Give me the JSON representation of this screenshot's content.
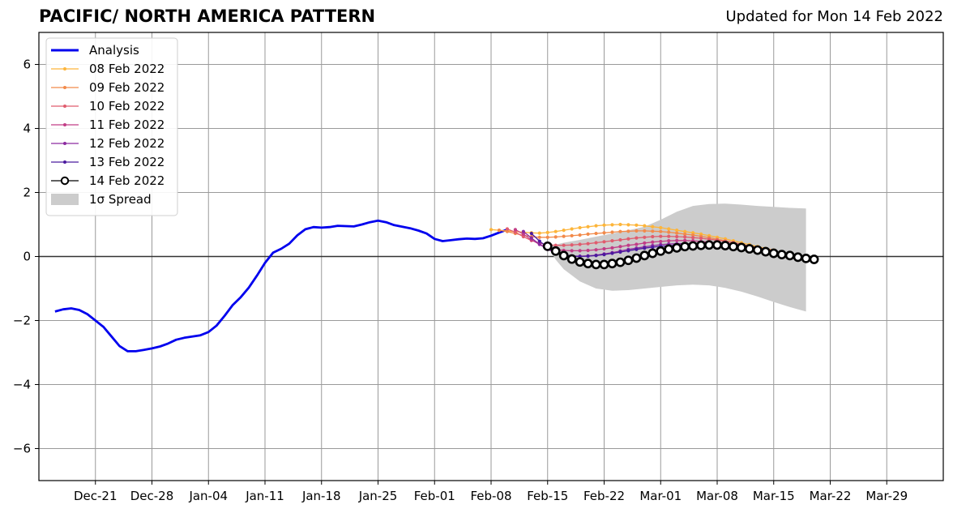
{
  "chart_data": {
    "type": "line",
    "title": "PACIFIC/ NORTH AMERICA PATTERN",
    "subtitle": "Updated for Mon 14 Feb 2022",
    "xlabel": "",
    "ylabel": "",
    "x_start": "Dec-14",
    "xlim": [
      "Dec-14",
      "Apr-05"
    ],
    "ylim": [
      -7,
      7
    ],
    "grid": true,
    "legend_position": "top-left",
    "x_ticks": [
      "Dec-21",
      "Dec-28",
      "Jan-04",
      "Jan-11",
      "Jan-18",
      "Jan-25",
      "Feb-01",
      "Feb-08",
      "Feb-15",
      "Feb-22",
      "Mar-01",
      "Mar-08",
      "Mar-15",
      "Mar-22",
      "Mar-29"
    ],
    "y_ticks": [
      "−6",
      "−4",
      "−2",
      "0",
      "2",
      "4",
      "6"
    ],
    "series": [
      {
        "name": "Analysis",
        "color": "#0000ee",
        "start": "Dec-16",
        "values": [
          -1.72,
          -1.65,
          -1.62,
          -1.67,
          -1.8,
          -2.0,
          -2.2,
          -2.5,
          -2.8,
          -2.96,
          -2.96,
          -2.92,
          -2.87,
          -2.81,
          -2.72,
          -2.6,
          -2.54,
          -2.5,
          -2.46,
          -2.36,
          -2.16,
          -1.85,
          -1.52,
          -1.27,
          -0.97,
          -0.6,
          -0.2,
          0.12,
          0.24,
          0.4,
          0.66,
          0.85,
          0.92,
          0.9,
          0.92,
          0.96,
          0.95,
          0.94,
          1.0,
          1.07,
          1.12,
          1.07,
          0.98,
          0.93,
          0.88,
          0.81,
          0.72,
          0.55,
          0.48,
          0.51,
          0.54,
          0.56,
          0.55,
          0.57,
          0.65,
          0.75,
          0.84
        ]
      },
      {
        "name": "08 Feb 2022",
        "color": "#fdb53a",
        "start": "Feb-08",
        "values": [
          0.84,
          0.82,
          0.8,
          0.78,
          0.76,
          0.74,
          0.73,
          0.75,
          0.78,
          0.82,
          0.86,
          0.9,
          0.93,
          0.96,
          0.98,
          0.99,
          1.0,
          0.99,
          0.98,
          0.96,
          0.93,
          0.9,
          0.86,
          0.82,
          0.78,
          0.74,
          0.7,
          0.65,
          0.6,
          0.55,
          0.49,
          0.43,
          0.37,
          0.31,
          0.25,
          0.2
        ]
      },
      {
        "name": "09 Feb 2022",
        "color": "#f28a4a",
        "start": "Feb-09",
        "values": [
          0.82,
          0.78,
          0.72,
          0.66,
          0.62,
          0.6,
          0.6,
          0.61,
          0.63,
          0.65,
          0.67,
          0.7,
          0.72,
          0.74,
          0.76,
          0.78,
          0.79,
          0.8,
          0.8,
          0.79,
          0.78,
          0.76,
          0.73,
          0.7,
          0.67,
          0.63,
          0.59,
          0.54,
          0.49,
          0.44,
          0.38,
          0.32,
          0.26,
          0.21,
          0.18
        ]
      },
      {
        "name": "10 Feb 2022",
        "color": "#e05c6e",
        "start": "Feb-10",
        "values": [
          0.86,
          0.76,
          0.62,
          0.5,
          0.42,
          0.37,
          0.35,
          0.35,
          0.36,
          0.38,
          0.4,
          0.43,
          0.46,
          0.49,
          0.52,
          0.55,
          0.58,
          0.6,
          0.62,
          0.63,
          0.63,
          0.62,
          0.61,
          0.59,
          0.57,
          0.54,
          0.51,
          0.47,
          0.43,
          0.38,
          0.33,
          0.28,
          0.23,
          0.19
        ]
      },
      {
        "name": "11 Feb 2022",
        "color": "#c23d86",
        "start": "Feb-11",
        "values": [
          0.84,
          0.7,
          0.52,
          0.38,
          0.28,
          0.22,
          0.19,
          0.18,
          0.18,
          0.19,
          0.21,
          0.24,
          0.27,
          0.31,
          0.35,
          0.38,
          0.42,
          0.45,
          0.47,
          0.49,
          0.5,
          0.5,
          0.49,
          0.47,
          0.45,
          0.42,
          0.39,
          0.35,
          0.31,
          0.27,
          0.23,
          0.19,
          0.16
        ]
      },
      {
        "name": "12 Feb 2022",
        "color": "#8c2aa0",
        "start": "Feb-12",
        "values": [
          0.78,
          0.58,
          0.38,
          0.22,
          0.12,
          0.05,
          0.02,
          0.01,
          0.02,
          0.04,
          0.08,
          0.12,
          0.17,
          0.22,
          0.26,
          0.3,
          0.34,
          0.37,
          0.39,
          0.4,
          0.4,
          0.39,
          0.38,
          0.36,
          0.34,
          0.31,
          0.28,
          0.24,
          0.21,
          0.17,
          0.14,
          0.11
        ]
      },
      {
        "name": "13 Feb 2022",
        "color": "#4b1a9e",
        "start": "Feb-13",
        "values": [
          0.72,
          0.48,
          0.28,
          0.14,
          0.06,
          0.01,
          0.0,
          0.01,
          0.03,
          0.06,
          0.1,
          0.14,
          0.18,
          0.22,
          0.26,
          0.29,
          0.32,
          0.34,
          0.35,
          0.36,
          0.36,
          0.35,
          0.34,
          0.32,
          0.3,
          0.27,
          0.24,
          0.21,
          0.18,
          0.15,
          0.13
        ]
      },
      {
        "name": "14 Feb 2022",
        "color": "#000000",
        "start": "Feb-15",
        "values": [
          0.32,
          0.17,
          0.03,
          -0.08,
          -0.17,
          -0.22,
          -0.25,
          -0.25,
          -0.22,
          -0.18,
          -0.12,
          -0.05,
          0.03,
          0.1,
          0.17,
          0.23,
          0.27,
          0.31,
          0.33,
          0.35,
          0.36,
          0.36,
          0.34,
          0.31,
          0.28,
          0.24,
          0.2,
          0.15,
          0.1,
          0.06,
          0.03,
          -0.02,
          -0.06,
          -0.09
        ]
      }
    ],
    "spread": {
      "name": "1σ Spread",
      "color": "#cccccc",
      "start": "Feb-15",
      "end": "Mar-19",
      "upper_points": [
        {
          "x": "Feb-15",
          "y": 0.32
        },
        {
          "x": "Feb-17",
          "y": 0.43
        },
        {
          "x": "Feb-19",
          "y": 0.52
        },
        {
          "x": "Feb-21",
          "y": 0.62
        },
        {
          "x": "Feb-23",
          "y": 0.72
        },
        {
          "x": "Feb-25",
          "y": 0.82
        },
        {
          "x": "Feb-27",
          "y": 0.93
        },
        {
          "x": "Mar-01",
          "y": 1.15
        },
        {
          "x": "Mar-03",
          "y": 1.4
        },
        {
          "x": "Mar-05",
          "y": 1.58
        },
        {
          "x": "Mar-07",
          "y": 1.64
        },
        {
          "x": "Mar-09",
          "y": 1.65
        },
        {
          "x": "Mar-11",
          "y": 1.62
        },
        {
          "x": "Mar-13",
          "y": 1.58
        },
        {
          "x": "Mar-15",
          "y": 1.55
        },
        {
          "x": "Mar-17",
          "y": 1.52
        },
        {
          "x": "Mar-19",
          "y": 1.5
        }
      ],
      "lower_points": [
        {
          "x": "Feb-15",
          "y": 0.32
        },
        {
          "x": "Feb-16",
          "y": -0.1
        },
        {
          "x": "Feb-17",
          "y": -0.4
        },
        {
          "x": "Feb-19",
          "y": -0.78
        },
        {
          "x": "Feb-21",
          "y": -1.0
        },
        {
          "x": "Feb-23",
          "y": -1.07
        },
        {
          "x": "Feb-25",
          "y": -1.05
        },
        {
          "x": "Feb-27",
          "y": -1.0
        },
        {
          "x": "Mar-01",
          "y": -0.95
        },
        {
          "x": "Mar-03",
          "y": -0.9
        },
        {
          "x": "Mar-05",
          "y": -0.88
        },
        {
          "x": "Mar-07",
          "y": -0.9
        },
        {
          "x": "Mar-09",
          "y": -0.98
        },
        {
          "x": "Mar-11",
          "y": -1.1
        },
        {
          "x": "Mar-13",
          "y": -1.25
        },
        {
          "x": "Mar-15",
          "y": -1.42
        },
        {
          "x": "Mar-17",
          "y": -1.58
        },
        {
          "x": "Mar-19",
          "y": -1.72
        }
      ]
    }
  }
}
